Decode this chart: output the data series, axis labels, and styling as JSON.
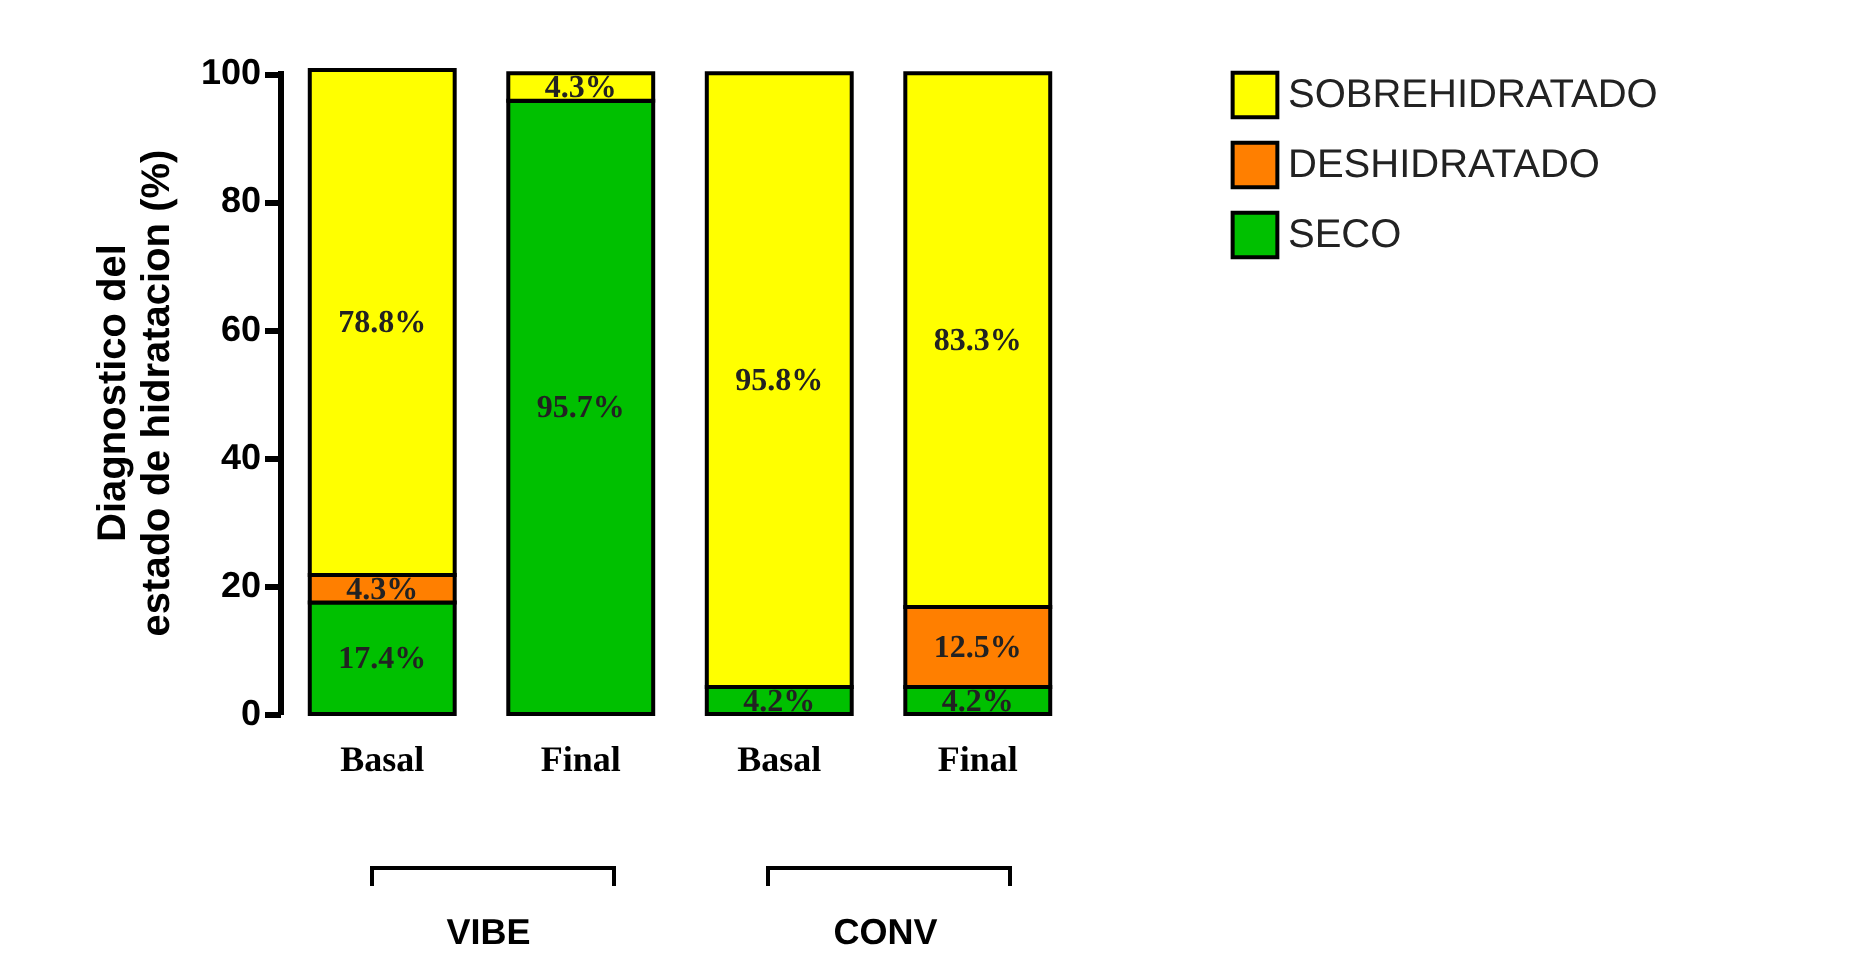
{
  "chart_data": {
    "type": "bar",
    "stacked": true,
    "ylabel": "Diagnostico del\nestado de hidratacion (%)",
    "categories": [
      "Basal",
      "Final",
      "Basal",
      "Final"
    ],
    "series": [
      {
        "name": "SECO",
        "color": "#00c000",
        "values": [
          17.4,
          95.7,
          4.2,
          4.2
        ],
        "value_labels": [
          "17.4%",
          "95.7%",
          "4.2%",
          "4.2%"
        ]
      },
      {
        "name": "DESHIDRATADO",
        "color": "#ff7f00",
        "values": [
          4.3,
          0,
          0,
          12.5
        ],
        "value_labels": [
          "4.3%",
          null,
          null,
          "12.5%"
        ]
      },
      {
        "name": "SOBREHIDRATADO",
        "color": "#ffff00",
        "values": [
          78.8,
          4.3,
          95.8,
          83.3
        ],
        "value_labels": [
          "78.8%",
          "4.3%",
          "95.8%",
          "83.3%"
        ]
      }
    ],
    "ylim": [
      0,
      100.5
    ],
    "yticks": [
      0,
      20,
      40,
      60,
      80,
      100
    ],
    "grid": false,
    "legend": "top right",
    "annotations": [
      "VIBE",
      "CONV"
    ]
  }
}
